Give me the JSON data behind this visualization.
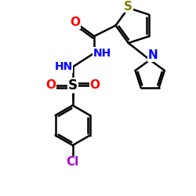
{
  "background_color": "#ffffff",
  "atom_colors": {
    "S_thiophene": "#808000",
    "N": "#0000ff",
    "O": "#ff0000",
    "Cl": "#aa00cc",
    "C": "#000000"
  },
  "bond_lw": 1.8,
  "figsize": [
    2.5,
    2.5
  ],
  "dpi": 100,
  "xlim": [
    0,
    250
  ],
  "ylim": [
    0,
    250
  ]
}
